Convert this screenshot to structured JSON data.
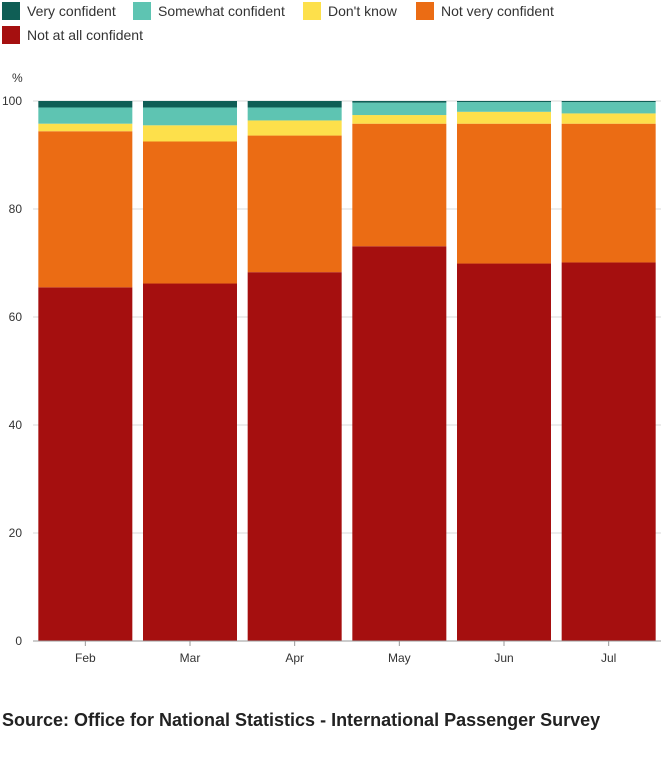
{
  "chart_data": {
    "type": "bar",
    "stacked": true,
    "title": "",
    "ylabel": "%",
    "xlabel": "",
    "ylim": [
      0,
      100
    ],
    "yticks": [
      0,
      20,
      40,
      60,
      80,
      100
    ],
    "categories": [
      "Feb",
      "Mar",
      "Apr",
      "May",
      "Jun",
      "Jul"
    ],
    "legend_position": "top",
    "series": [
      {
        "name": "Not at all confident",
        "color": "#a50f0f",
        "values": [
          65.5,
          66.2,
          68.3,
          73.1,
          69.9,
          70.1
        ]
      },
      {
        "name": "Not very confident",
        "color": "#eb6c14",
        "values": [
          28.9,
          26.3,
          25.3,
          22.7,
          25.9,
          25.7
        ]
      },
      {
        "name": "Don't know",
        "color": "#fde04b",
        "values": [
          1.4,
          3.0,
          2.8,
          1.6,
          2.2,
          1.9
        ]
      },
      {
        "name": "Somewhat confident",
        "color": "#5ec4b2",
        "values": [
          3.0,
          3.3,
          2.4,
          2.3,
          1.8,
          2.1
        ]
      },
      {
        "name": "Very confident",
        "color": "#0f5e55",
        "values": [
          1.2,
          1.2,
          1.2,
          0.3,
          0.2,
          0.2
        ]
      }
    ]
  },
  "legend": [
    {
      "label": "Very confident",
      "color": "#0f5e55"
    },
    {
      "label": "Somewhat confident",
      "color": "#5ec4b2"
    },
    {
      "label": "Don't know",
      "color": "#fde04b"
    },
    {
      "label": "Not very confident",
      "color": "#eb6c14"
    },
    {
      "label": "Not at all confident",
      "color": "#a50f0f"
    }
  ],
  "source": "Source: Office for National Statistics - International Passenger Survey"
}
